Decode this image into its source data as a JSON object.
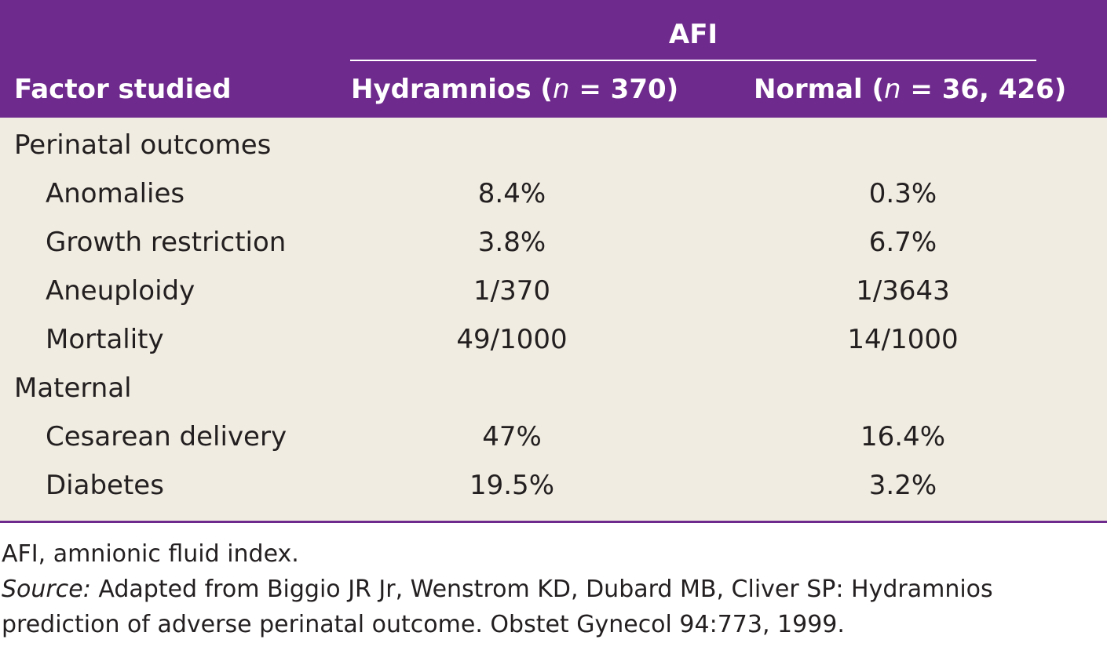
{
  "table": {
    "group_header": "AFI",
    "columns": {
      "factor": "Factor studied",
      "hydramnios_label": "Hydramnios (",
      "hydramnios_n": "n",
      "hydramnios_value": " = 370)",
      "normal_label": "Normal (",
      "normal_n": "n",
      "normal_value": " = 36, 426)"
    },
    "rows": [
      {
        "label": "Perinatal outcomes",
        "hydramnios": "",
        "normal": ""
      },
      {
        "label": "Anomalies",
        "hydramnios": "8.4%",
        "normal": "0.3%"
      },
      {
        "label": "Growth restriction",
        "hydramnios": "3.8%",
        "normal": "6.7%"
      },
      {
        "label": "Aneuploidy",
        "hydramnios": "1/370",
        "normal": "1/3643"
      },
      {
        "label": "Mortality",
        "hydramnios": "49/1000",
        "normal": "14/1000"
      },
      {
        "label": "Maternal",
        "hydramnios": "",
        "normal": ""
      },
      {
        "label": "Cesarean delivery",
        "hydramnios": "47%",
        "normal": "16.4%"
      },
      {
        "label": "Diabetes",
        "hydramnios": "19.5%",
        "normal": "3.2%"
      }
    ]
  },
  "notes": {
    "abbreviation": "AFI, amnionic fluid index.",
    "source_label": "Source:",
    "source_text": " Adapted from Biggio JR Jr, Wenstrom KD, Dubard MB, Cliver SP: Hydramnios prediction of adverse perinatal outcome. Obstet Gynecol 94:773, 1999."
  },
  "colors": {
    "header_bg": "#6f2a8d",
    "body_bg": "#f0ece1"
  }
}
